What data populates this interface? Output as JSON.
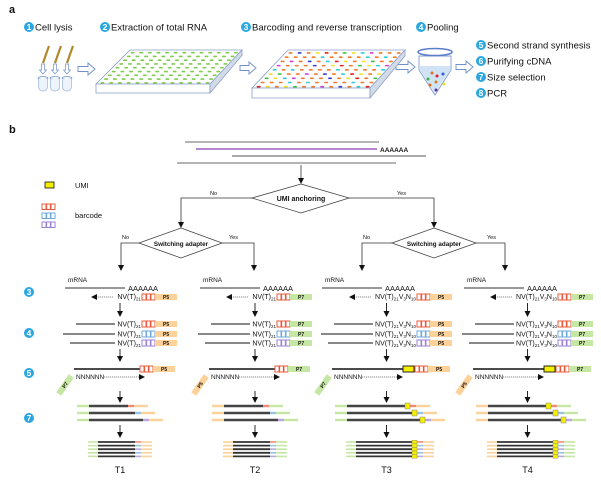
{
  "panel_a": {
    "label": "a",
    "steps_top": [
      {
        "num": "1",
        "label": "Cell lysis"
      },
      {
        "num": "2",
        "label": "Extraction of total RNA"
      },
      {
        "num": "3",
        "label": "Barcoding and reverse transcription"
      },
      {
        "num": "4",
        "label": "Pooling"
      }
    ],
    "steps_right": [
      {
        "num": "5",
        "label": "Second strand synthesis"
      },
      {
        "num": "6",
        "label": "Purifying cDNA"
      },
      {
        "num": "7",
        "label": "Size selection"
      },
      {
        "num": "8",
        "label": "PCR"
      }
    ]
  },
  "panel_b": {
    "label": "b",
    "polya": "AAAAAA",
    "legend": {
      "umi": "UMI",
      "barcode": "barcode"
    },
    "decision_umi": {
      "label": "UMI anchoring",
      "no": "No",
      "yes": "Yes"
    },
    "decision_switch_left": {
      "label": "Switching adapter",
      "no": "No",
      "yes": "Yes"
    },
    "decision_switch_right": {
      "label": "Switching adapter",
      "no": "No",
      "yes": "Yes"
    },
    "step_markers": [
      "3",
      "4",
      "5",
      "7"
    ],
    "mrna_label": "mRNA",
    "random_primer": "NNNNNN",
    "columns": [
      {
        "name": "T1",
        "adapter": "P5",
        "second_adapter": "P7",
        "umi": false,
        "primer": [
          {
            "t": "NV(T)"
          },
          {
            "t": "21",
            "sub": true
          }
        ]
      },
      {
        "name": "T2",
        "adapter": "P7",
        "second_adapter": "P5",
        "umi": false,
        "primer": [
          {
            "t": "NV(T)"
          },
          {
            "t": "21",
            "sub": true
          }
        ]
      },
      {
        "name": "T3",
        "adapter": "P5",
        "second_adapter": "P7",
        "umi": true,
        "primer": [
          {
            "t": "NV(T)"
          },
          {
            "t": "21",
            "sub": true
          },
          {
            "t": "V"
          },
          {
            "t": "3",
            "sub": true
          },
          {
            "t": "N"
          },
          {
            "t": "10",
            "sub": true
          }
        ]
      },
      {
        "name": "T4",
        "adapter": "P7",
        "second_adapter": "P5",
        "umi": true,
        "primer": [
          {
            "t": "NV(T)"
          },
          {
            "t": "21",
            "sub": true
          },
          {
            "t": "V"
          },
          {
            "t": "3",
            "sub": true
          },
          {
            "t": "N"
          },
          {
            "t": "10",
            "sub": true
          }
        ]
      }
    ]
  },
  "colors": {
    "step_circle": "#2aa6e0",
    "p5": "#fdd29a",
    "p7": "#c6e6a4",
    "umi": "#f4ee00",
    "barcode_red": "#e8583a",
    "barcode_blue": "#6fa8dc",
    "barcode_purple": "#9b82d0",
    "mrna_purple": "#8a3fb0",
    "well_green": "#7dcc4a"
  }
}
